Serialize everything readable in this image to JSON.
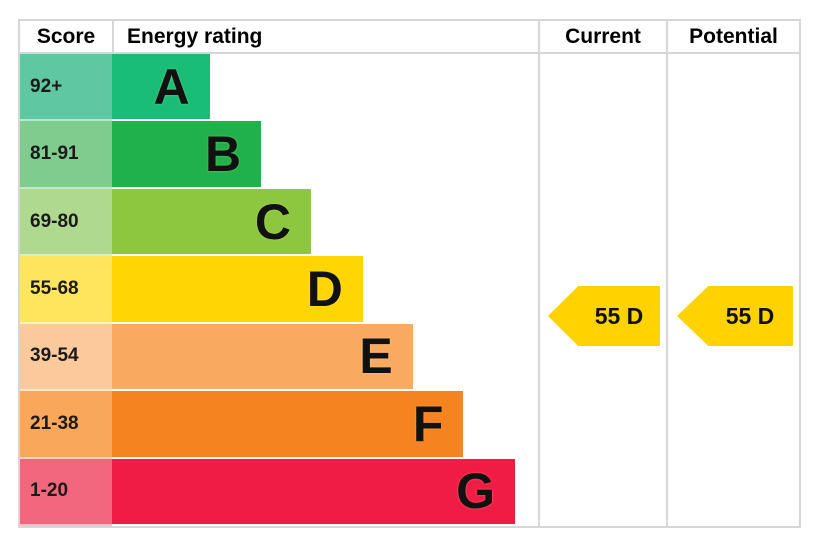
{
  "header": {
    "score": "Score",
    "energy_rating": "Energy rating",
    "current": "Current",
    "potential": "Potential"
  },
  "chart_data": {
    "type": "bar",
    "kind": "energy-performance-rating",
    "title": "Energy rating",
    "orientation": "horizontal",
    "bands": [
      {
        "score_range": "92+",
        "rating": "A",
        "bar_color": "#1abd78",
        "band_bg": "#5fc7a2",
        "width_pct": 22.9
      },
      {
        "score_range": "81-91",
        "rating": "B",
        "bar_color": "#21b14c",
        "band_bg": "#80cb8e",
        "width_pct": 35.0
      },
      {
        "score_range": "69-80",
        "rating": "C",
        "bar_color": "#8dc63f",
        "band_bg": "#aed98f",
        "width_pct": 46.7
      },
      {
        "score_range": "55-68",
        "rating": "D",
        "bar_color": "#ffd503",
        "band_bg": "#ffe55d",
        "width_pct": 58.9
      },
      {
        "score_range": "39-54",
        "rating": "E",
        "bar_color": "#faaa60",
        "band_bg": "#fbc99b",
        "width_pct": 70.6
      },
      {
        "score_range": "21-38",
        "rating": "F",
        "bar_color": "#f58320",
        "band_bg": "#f8a75b",
        "width_pct": 82.5
      },
      {
        "score_range": "1-20",
        "rating": "G",
        "bar_color": "#f01c45",
        "band_bg": "#f3677e",
        "width_pct": 94.6
      }
    ],
    "current": {
      "label": "55 D",
      "score": 55,
      "rating": "D",
      "arrow_color": "#ffd200"
    },
    "potential": {
      "label": "55 D",
      "score": 55,
      "rating": "D",
      "arrow_color": "#ffd200"
    }
  }
}
